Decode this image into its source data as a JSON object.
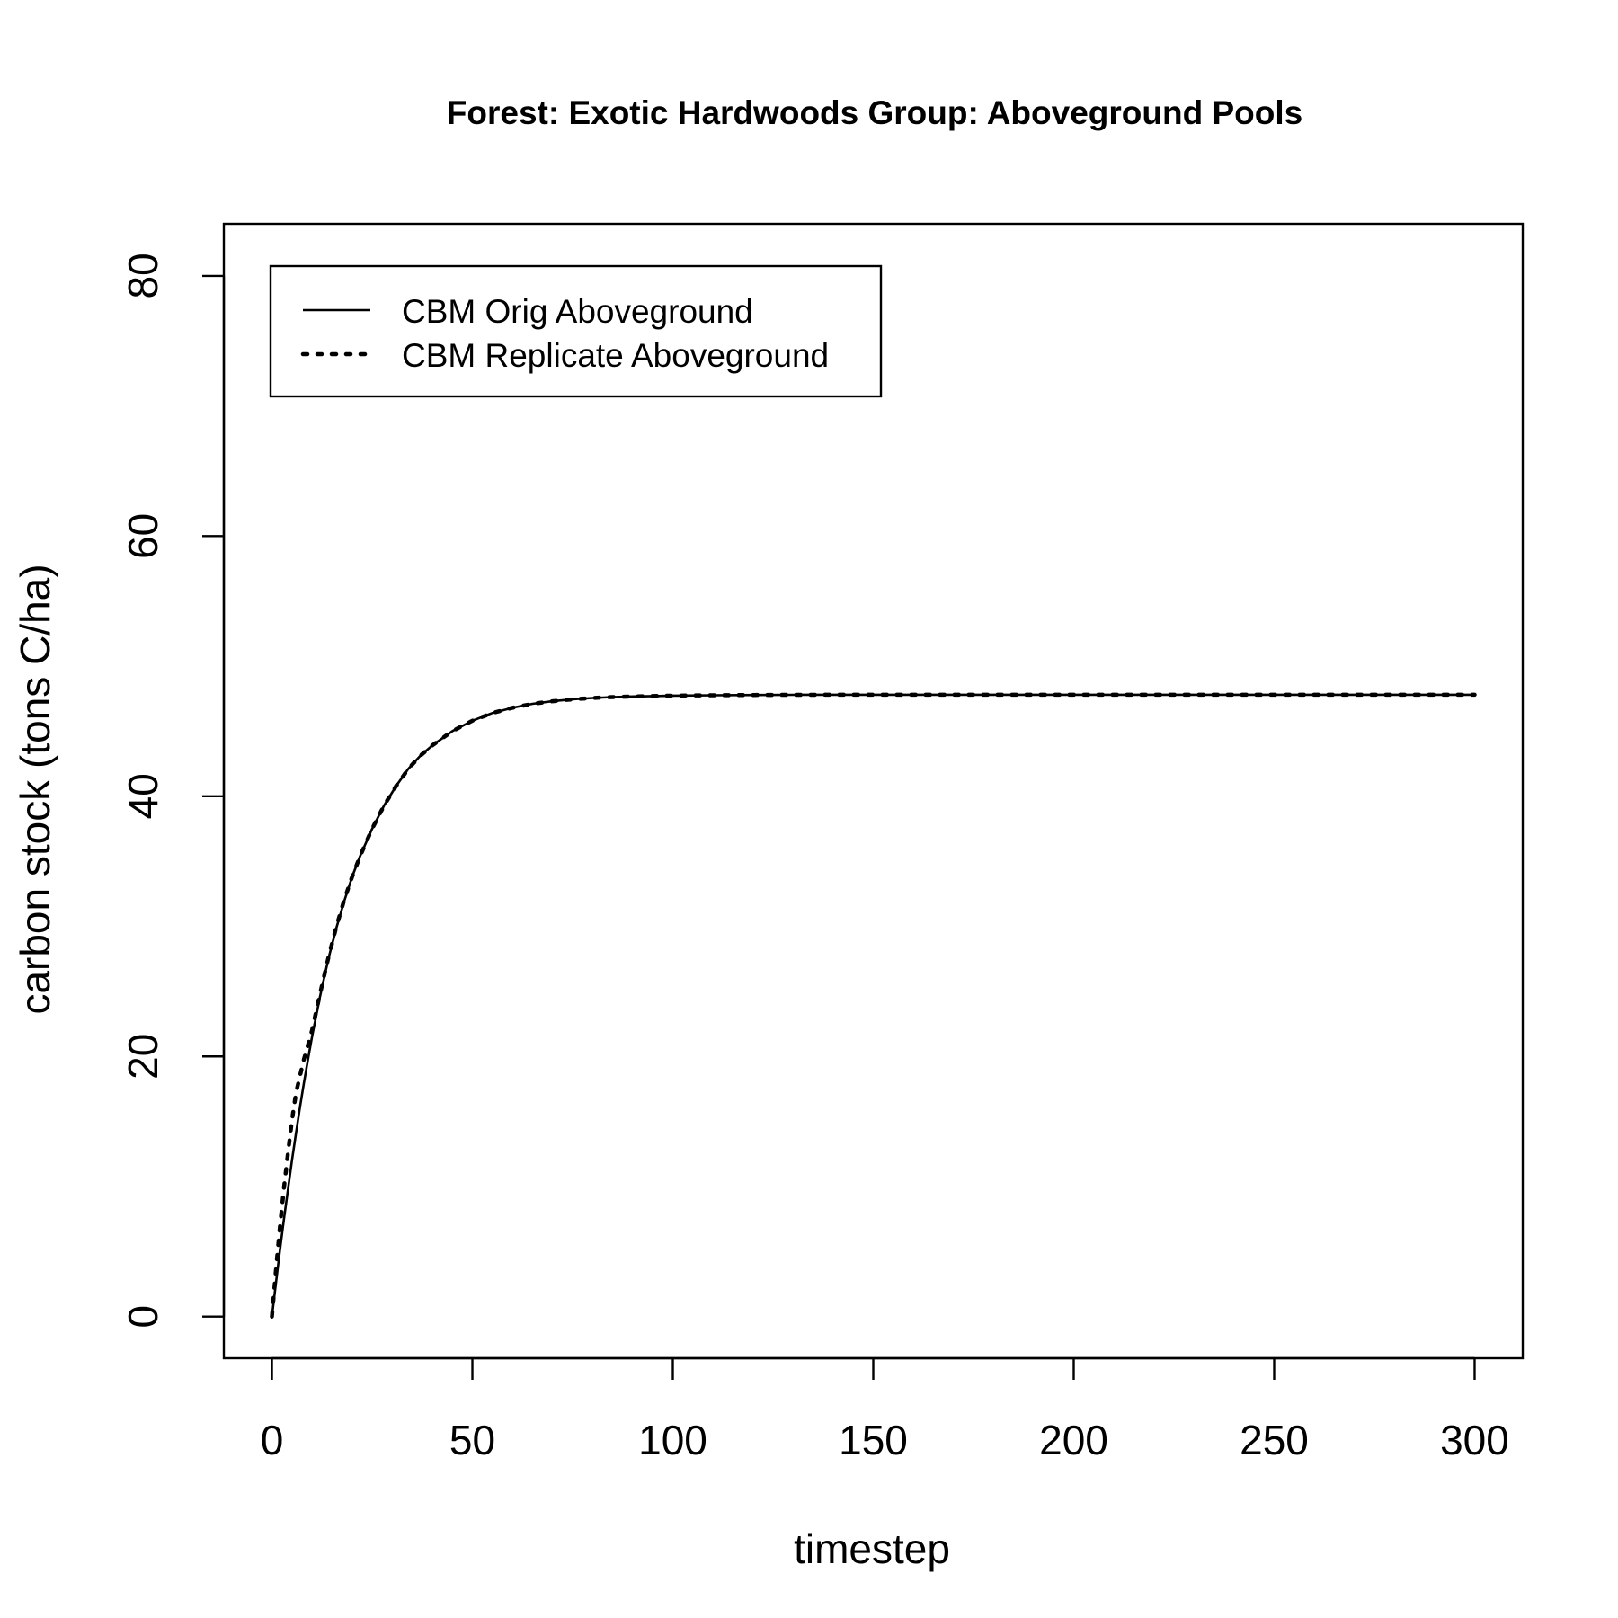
{
  "chart_data": {
    "type": "line",
    "title": "Forest: Exotic Hardwoods Group: Aboveground Pools",
    "xlabel": "timestep",
    "ylabel": "carbon stock (tons C/ha)",
    "xlim": [
      -12,
      312
    ],
    "ylim": [
      -3.2,
      84
    ],
    "x_ticks": [
      0,
      50,
      100,
      150,
      200,
      250,
      300
    ],
    "y_ticks": [
      0,
      20,
      40,
      60,
      80
    ],
    "grid": false,
    "legend_position": "top-left",
    "x": [
      0,
      1,
      2,
      3,
      4,
      5,
      6,
      7,
      8,
      9,
      10,
      12,
      14,
      16,
      18,
      20,
      22,
      25,
      28,
      31,
      34,
      37,
      40,
      45,
      50,
      55,
      60,
      65,
      70,
      75,
      80,
      85,
      90,
      95,
      100,
      110,
      120,
      130,
      140,
      150,
      160,
      170,
      180,
      190,
      200,
      210,
      220,
      230,
      240,
      250,
      260,
      270,
      280,
      290,
      300
    ],
    "series": [
      {
        "name": "CBM Orig Aboveground",
        "line_style": "solid",
        "values": [
          0,
          2.6,
          5.1,
          7.5,
          9.8,
          12.0,
          14.1,
          16.1,
          18.0,
          19.8,
          21.5,
          24.6,
          27.4,
          29.8,
          31.9,
          33.8,
          35.4,
          37.5,
          39.3,
          40.8,
          42.1,
          43.1,
          43.9,
          45.0,
          45.8,
          46.4,
          46.8,
          47.1,
          47.3,
          47.45,
          47.55,
          47.62,
          47.67,
          47.7,
          47.73,
          47.76,
          47.78,
          47.79,
          47.8,
          47.8,
          47.8,
          47.8,
          47.8,
          47.8,
          47.8,
          47.8,
          47.8,
          47.8,
          47.8,
          47.8,
          47.8,
          47.8,
          47.8,
          47.8,
          47.8
        ]
      },
      {
        "name": "CBM Replicate Aboveground",
        "line_style": "dotted",
        "values": [
          0,
          3.6,
          6.9,
          9.9,
          12.6,
          15.1,
          17.2,
          18.5,
          19.8,
          20.9,
          22.0,
          24.8,
          27.5,
          29.9,
          32.0,
          33.8,
          35.4,
          37.5,
          39.3,
          40.8,
          42.1,
          43.1,
          43.9,
          45.0,
          45.8,
          46.4,
          46.8,
          47.1,
          47.3,
          47.45,
          47.55,
          47.62,
          47.67,
          47.7,
          47.73,
          47.76,
          47.78,
          47.79,
          47.8,
          47.8,
          47.8,
          47.8,
          47.8,
          47.8,
          47.8,
          47.8,
          47.8,
          47.8,
          47.8,
          47.8,
          47.8,
          47.8,
          47.8,
          47.8,
          47.8
        ]
      }
    ]
  }
}
